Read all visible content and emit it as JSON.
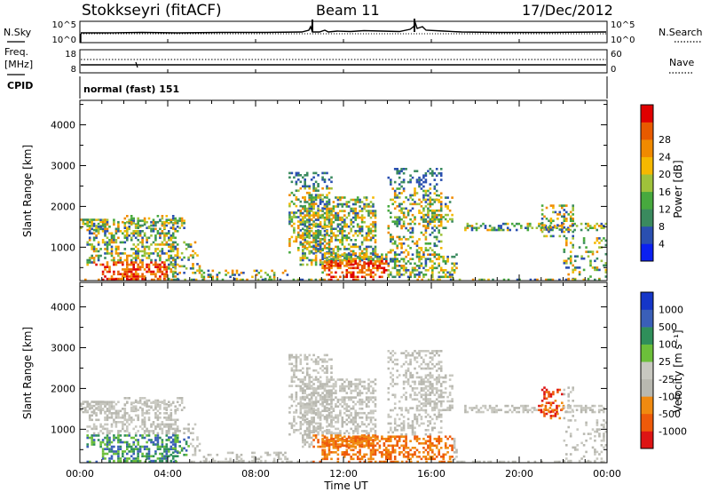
{
  "header": {
    "station": "Stokkseyri (fitACF)",
    "beam": "Beam 11",
    "date": "17/Dec/2012"
  },
  "left_labels": {
    "nsky": "N.Sky",
    "freq_line1": "Freq.",
    "freq_line2": "[MHz]",
    "cpid": "CPID"
  },
  "right_labels": {
    "nsearch": "N.Search",
    "nave": "Nave"
  },
  "cpid_text": "normal (fast) 151",
  "noise_panel": {
    "left_ticks": [
      "10^5",
      "10^0"
    ],
    "right_ticks": [
      "10^5",
      "10^0"
    ]
  },
  "freq_panel": {
    "left_ticks": [
      "18",
      "8"
    ],
    "right_ticks": [
      "60",
      "0"
    ]
  },
  "colors": {
    "power_scale": [
      "#0b20f0",
      "#2a4fb0",
      "#3a8a5e",
      "#47a93e",
      "#9fc23b",
      "#f5b800",
      "#f08a00",
      "#e85a00",
      "#e00000"
    ],
    "velocity_scale": [
      "#1536c8",
      "#3a5fb8",
      "#2f8f5a",
      "#6cbf3a",
      "#c8c8c0",
      "#b8b8b0",
      "#f08a10",
      "#ee5a0a",
      "#dd1414"
    ]
  },
  "chart_data": [
    {
      "type": "heatmap",
      "title": "Power",
      "xlabel": "Time UT",
      "ylabel": "Slant Range [km]",
      "xlim": [
        "00:00",
        "24:00"
      ],
      "ylim": [
        180,
        4600
      ],
      "x_ticks": [
        "00:00",
        "04:00",
        "08:00",
        "12:00",
        "16:00",
        "20:00",
        "00:00"
      ],
      "y_ticks": [
        1000,
        2000,
        3000,
        4000
      ],
      "colorbar": {
        "label": "Power [dB]",
        "range": [
          0,
          32
        ],
        "ticks": [
          "4",
          "8",
          "12",
          "16",
          "20",
          "24",
          "28"
        ]
      }
    },
    {
      "type": "heatmap",
      "title": "Velocity",
      "xlabel": "Time UT",
      "ylabel": "Slant Range [km]",
      "xlim": [
        "00:00",
        "24:00"
      ],
      "ylim": [
        180,
        4600
      ],
      "x_ticks": [
        "00:00",
        "04:00",
        "08:00",
        "12:00",
        "16:00",
        "20:00",
        "00:00"
      ],
      "y_ticks": [
        1000,
        2000,
        3000,
        4000
      ],
      "colorbar": {
        "label": "Velocity [m s⁻¹]",
        "ticks": [
          "1000",
          "500",
          "100",
          "25",
          "-25",
          "-100",
          "-500",
          "-1000"
        ]
      }
    }
  ]
}
